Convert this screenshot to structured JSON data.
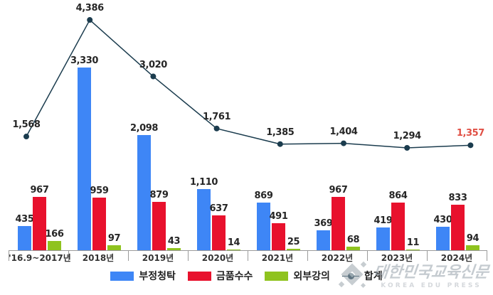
{
  "chart_data": {
    "type": "bar",
    "title": "",
    "xlabel": "",
    "ylabel": "",
    "grid": false,
    "legend_position": "bottom",
    "categories": [
      "'16.9~2017년",
      "2018년",
      "2019년",
      "2020년",
      "2021년",
      "2022년",
      "2023년",
      "2024년"
    ],
    "series": [
      {
        "name": "부정청탁",
        "type": "bar",
        "color": "#3E86F6",
        "values": [
          435,
          3330,
          2098,
          1110,
          869,
          369,
          419,
          430
        ]
      },
      {
        "name": "금품수수",
        "type": "bar",
        "color": "#E8112D",
        "values": [
          967,
          959,
          879,
          637,
          491,
          967,
          864,
          833
        ]
      },
      {
        "name": "외부강의",
        "type": "bar",
        "color": "#8FC31F",
        "values": [
          166,
          97,
          43,
          14,
          25,
          68,
          11,
          94
        ]
      },
      {
        "name": "합계",
        "type": "line",
        "color": "#1B3C4E",
        "values": [
          1568,
          4386,
          3020,
          1761,
          1385,
          1404,
          1294,
          1357
        ]
      }
    ],
    "highlight_label": {
      "series": "합계",
      "index": 7,
      "color": "#E04F44"
    },
    "value_label_color": "#262626",
    "axis_color": "#9B9B9B"
  },
  "watermark": {
    "korean": "대한민국교육신문",
    "english": "KOREA EDU PRESS"
  }
}
